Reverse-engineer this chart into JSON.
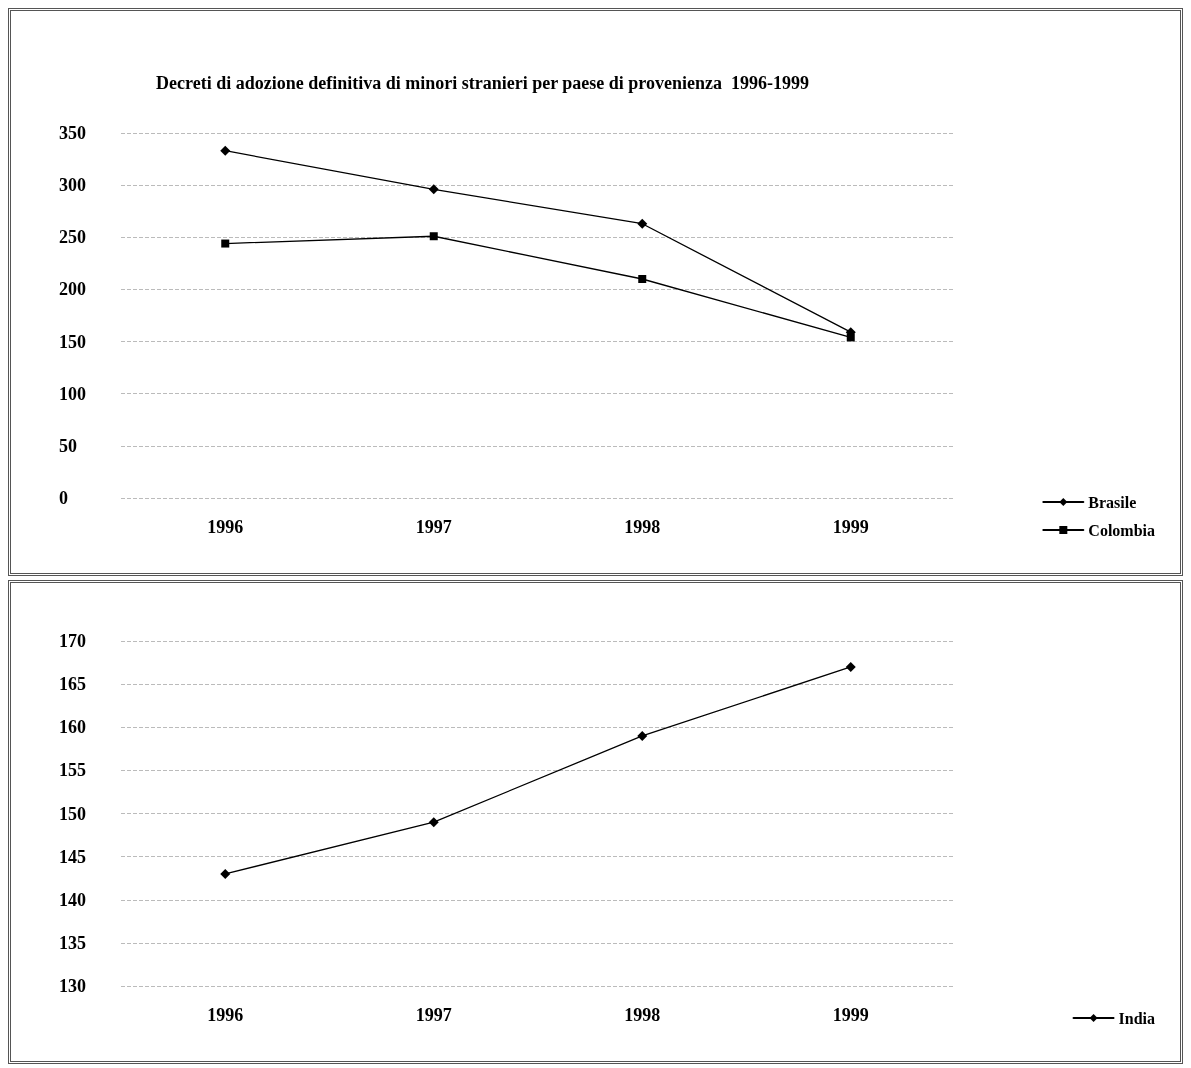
{
  "chart_data": [
    {
      "type": "line",
      "title": "Decreti di adozione definitiva di minori stranieri per paese di provenienza  1996-1999",
      "categories": [
        "1996",
        "1997",
        "1998",
        "1999"
      ],
      "series": [
        {
          "name": "Brasile",
          "color": "#000000",
          "marker": "diamond",
          "values": [
            333,
            296,
            263,
            159
          ]
        },
        {
          "name": "Colombia",
          "color": "#000000",
          "marker": "square",
          "values": [
            244,
            251,
            210,
            154
          ]
        }
      ],
      "ylim": [
        0,
        350
      ],
      "yticks": [
        0,
        50,
        100,
        150,
        200,
        250,
        300,
        350
      ],
      "grid": "y",
      "legend": "bottom right",
      "line_style": "solid"
    },
    {
      "type": "line",
      "categories": [
        "1996",
        "1997",
        "1998",
        "1999"
      ],
      "series": [
        {
          "name": "India",
          "color": "#000000",
          "marker": "diamond",
          "values": [
            143,
            149,
            159,
            167
          ]
        }
      ],
      "ylim": [
        130,
        170
      ],
      "yticks": [
        130,
        135,
        140,
        145,
        150,
        155,
        160,
        165,
        170
      ],
      "grid": "y",
      "legend": "bottom right",
      "line_style": "solid"
    }
  ]
}
